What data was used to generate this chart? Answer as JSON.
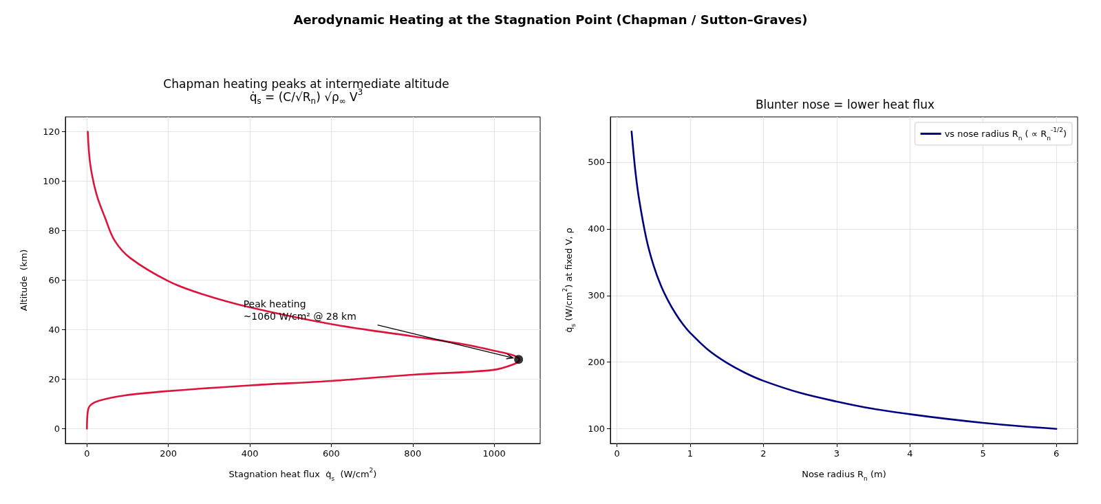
{
  "chart_data": [
    {
      "type": "line",
      "title": "Chapman heating peaks at intermediate altitude",
      "subtitle": "q̇$_{s}$ = (C/√R$_{n}$) √ρ$_{∞}$ V$^{3}$",
      "xlabel": "Stagnation heat flux  q̇$_{s}$  (W/cm$^{2}$)",
      "ylabel": "Altitude  (km)",
      "annotations": [
        "Aerodynamic Heating at the Stagnation Point (Chapman / Sutton–Graves)",
        "Peak heating\n~1060 W/cm² @ 28 km"
      ],
      "xlim": [
        -53,
        1113
      ],
      "xticks": [
        0,
        200,
        400,
        600,
        800,
        1000
      ],
      "ylim": [
        -6,
        126
      ],
      "yticks": [
        0,
        20,
        40,
        60,
        80,
        100,
        120
      ],
      "grid": true,
      "legend": false,
      "marker": "none",
      "line_style": "solid",
      "series": [
        {
          "type": "line",
          "color": "#dc143c",
          "x": [
            0,
            2,
            8,
            30,
            91,
            200,
            401,
            601,
            801,
            996,
            1049,
            1062,
            1049,
            1011,
            921,
            801,
            601,
            401,
            279,
            200,
            106,
            68,
            45,
            23,
            8,
            2
          ],
          "values": [
            0,
            6.9,
            9.4,
            11.3,
            13.4,
            15.2,
            17.5,
            19.3,
            21.8,
            23.7,
            26.1,
            27.9,
            29.5,
            31.1,
            34.2,
            37.3,
            42.2,
            49,
            54.6,
            59.6,
            69,
            76,
            85,
            95,
            107,
            120
          ]
        },
        {
          "type": "scatter",
          "marker": "circle",
          "color": "#000000",
          "x": [
            1060
          ],
          "values": [
            28
          ]
        }
      ]
    },
    {
      "type": "line",
      "title": "Blunter nose = lower heat flux",
      "xlabel": "Nose radius R$_{n}$ (m)",
      "ylabel": "q̇$_{s}$ (W/cm$^{2}$) at fixed V, ρ",
      "xlim": [
        -0.09,
        6.29
      ],
      "xticks": [
        0,
        1,
        2,
        3,
        4,
        5,
        6
      ],
      "ylim": [
        78,
        568
      ],
      "yticks": [
        100,
        200,
        300,
        400,
        500
      ],
      "grid": true,
      "legend": "top right",
      "marker": "none",
      "line_style": "solid",
      "series": [
        {
          "name": "vs nose radius R$_{n}$ ( ∝ R$_{n}$$^{-1/2}$)",
          "color": "#000080",
          "x": [
            0.2,
            0.25,
            0.3,
            0.4,
            0.5,
            0.6,
            0.7,
            0.8,
            0.9,
            1.0,
            1.25,
            1.5,
            1.75,
            2,
            2.5,
            3,
            3.5,
            4,
            4.5,
            5,
            5.5,
            6
          ],
          "values": [
            546,
            488,
            446,
            386,
            345,
            315,
            292,
            273,
            257,
            244,
            218,
            199,
            184,
            172,
            154,
            141,
            130,
            122,
            115,
            109,
            104,
            100
          ]
        }
      ]
    }
  ]
}
